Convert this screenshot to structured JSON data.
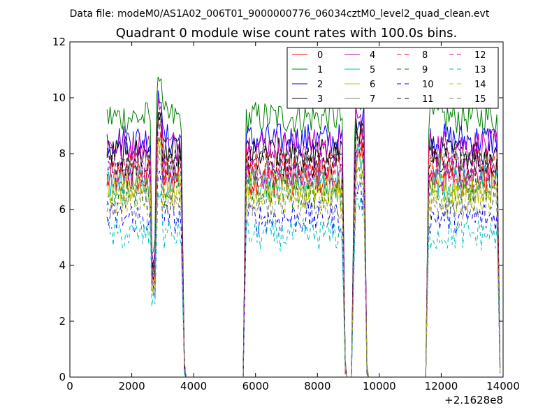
{
  "chart_data": {
    "type": "line",
    "suptitle": "Data file: modeM0/AS1A02_006T01_9000000776_06034cztM0_level2_quad_clean.evt",
    "title": "Quadrant 0 module wise count rates with 100.0s bins.",
    "xlabel": "",
    "ylabel": "",
    "x_offset_label": "+2.1628e8",
    "xlim": [
      0,
      14000
    ],
    "ylim": [
      0,
      12
    ],
    "xticks": [
      0,
      2000,
      4000,
      6000,
      8000,
      10000,
      12000,
      14000
    ],
    "xtick_labels": [
      "0",
      "2000",
      "4000",
      "6000",
      "8000",
      "10000",
      "12000",
      "14000"
    ],
    "yticks": [
      0,
      2,
      4,
      6,
      8,
      10,
      12
    ],
    "ytick_labels": [
      "0",
      "2",
      "4",
      "6",
      "8",
      "10",
      "12"
    ],
    "legend_position": "top-right",
    "segments": [
      {
        "start": 1200,
        "end": 3600,
        "gap_after_end": 3700
      },
      {
        "start": 5700,
        "end": 8800,
        "gap_after_end": 8900
      },
      {
        "start": 9200,
        "end": 9500,
        "gap_after_end": 9600
      },
      {
        "start": 11600,
        "end": 13800,
        "gap_after_end": 13900
      }
    ],
    "series": [
      {
        "name": "0",
        "color": "#ff0000",
        "style": "solid",
        "level": 7.1
      },
      {
        "name": "1",
        "color": "#008000",
        "style": "solid",
        "level": 9.3
      },
      {
        "name": "2",
        "color": "#0000ff",
        "style": "solid",
        "level": 8.5
      },
      {
        "name": "3",
        "color": "#000000",
        "style": "solid",
        "level": 8.0
      },
      {
        "name": "4",
        "color": "#bf00bf",
        "style": "solid",
        "level": 8.3
      },
      {
        "name": "5",
        "color": "#00bfbf",
        "style": "solid",
        "level": 7.0
      },
      {
        "name": "6",
        "color": "#bfbf00",
        "style": "solid",
        "level": 6.8
      },
      {
        "name": "7",
        "color": "#7f7f7f",
        "style": "solid",
        "level": 7.5
      },
      {
        "name": "8",
        "color": "#ff0000",
        "style": "dashed",
        "level": 7.6
      },
      {
        "name": "9",
        "color": "#008000",
        "style": "dashed",
        "level": 6.6
      },
      {
        "name": "10",
        "color": "#0000ff",
        "style": "dashed",
        "level": 5.7
      },
      {
        "name": "11",
        "color": "#000000",
        "style": "dashed",
        "level": 7.7
      },
      {
        "name": "12",
        "color": "#bf00bf",
        "style": "dashed",
        "level": 7.3
      },
      {
        "name": "13",
        "color": "#00bfbf",
        "style": "dashed",
        "level": 5.1
      },
      {
        "name": "14",
        "color": "#bfbf00",
        "style": "dashed",
        "level": 6.4
      },
      {
        "name": "15",
        "color": "#7f7f7f",
        "style": "dashed",
        "level": 6.2
      }
    ]
  }
}
